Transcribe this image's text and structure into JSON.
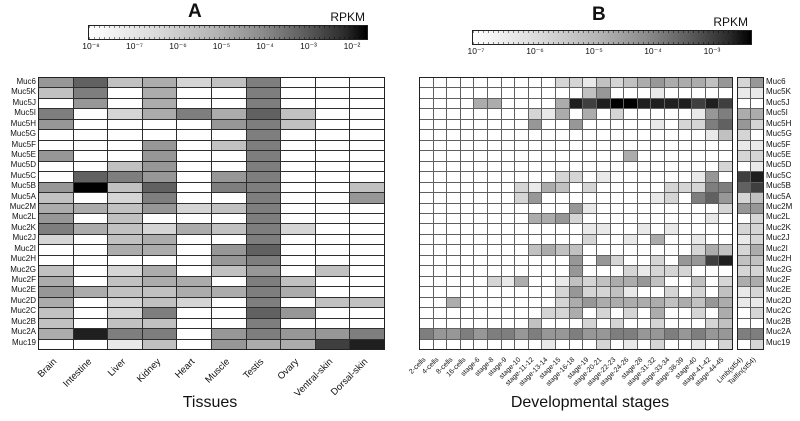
{
  "chart_data": [
    {
      "type": "heatmap",
      "panel_label": "A",
      "colorbar": {
        "title": "RPKM",
        "tick_labels": [
          "10⁻⁸",
          "10⁻⁷",
          "10⁻⁶",
          "10⁻⁵",
          "10⁻⁴",
          "10⁻³",
          "10⁻²"
        ],
        "orientation": "horizontal",
        "scale": "log10 RPKM, white = low, black = high"
      },
      "xlabel": "Tissues",
      "x_categories": [
        "Brain",
        "Intestine",
        "Liver",
        "Kidney",
        "Heart",
        "Muscle",
        "Testis",
        "Ovary",
        "Ventral-skin",
        "Dorsal-skin"
      ],
      "y_categories": [
        "Muc6",
        "Muc5K",
        "Muc5J",
        "Muc5I",
        "Muc5H",
        "Muc5G",
        "Muc5F",
        "Muc5E",
        "Muc5D",
        "Muc5C",
        "Muc5B",
        "Muc5A",
        "Muc2M",
        "Muc2L",
        "Muc2K",
        "Muc2J",
        "Muc2I",
        "Muc2H",
        "Muc2G",
        "Muc2F",
        "Muc2E",
        "Muc2D",
        "Muc2C",
        "Muc2B",
        "Muc2A",
        "Muc19"
      ],
      "value_scale": "grayscale intensity level 0-10; 0 = white (lowest RPKM), 10 = black (highest RPKM)",
      "values": [
        [
          5,
          7,
          3,
          4,
          2,
          3,
          6,
          0,
          0,
          0
        ],
        [
          3,
          6,
          0,
          4,
          0,
          0,
          6,
          0,
          0,
          0
        ],
        [
          0,
          5,
          0,
          4,
          0,
          0,
          6,
          0,
          0,
          0
        ],
        [
          6,
          0,
          2,
          4,
          6,
          4,
          7,
          3,
          0,
          0
        ],
        [
          5,
          0,
          0,
          0,
          0,
          5,
          6,
          3,
          0,
          0
        ],
        [
          0,
          0,
          0,
          0,
          0,
          0,
          6,
          0,
          0,
          0
        ],
        [
          0,
          0,
          0,
          5,
          0,
          3,
          6,
          0,
          0,
          0
        ],
        [
          5,
          0,
          0,
          5,
          0,
          0,
          6,
          0,
          0,
          0
        ],
        [
          0,
          0,
          3,
          5,
          0,
          0,
          6,
          0,
          0,
          0
        ],
        [
          0,
          7,
          6,
          5,
          0,
          5,
          6,
          0,
          0,
          0
        ],
        [
          5,
          10,
          3,
          7,
          0,
          6,
          6,
          0,
          0,
          3
        ],
        [
          3,
          0,
          2,
          6,
          0,
          0,
          6,
          0,
          0,
          5
        ],
        [
          4,
          4,
          3,
          5,
          2,
          3,
          6,
          0,
          0,
          0
        ],
        [
          5,
          0,
          3,
          0,
          0,
          0,
          6,
          0,
          0,
          0
        ],
        [
          6,
          4,
          3,
          2,
          4,
          3,
          6,
          2,
          0,
          0
        ],
        [
          2,
          0,
          3,
          4,
          0,
          0,
          6,
          0,
          0,
          0
        ],
        [
          0,
          0,
          4,
          4,
          0,
          5,
          7,
          0,
          0,
          0
        ],
        [
          0,
          0,
          0,
          0,
          0,
          5,
          6,
          0,
          0,
          0
        ],
        [
          3,
          0,
          2,
          4,
          0,
          3,
          5,
          0,
          3,
          0
        ],
        [
          4,
          0,
          3,
          4,
          4,
          0,
          6,
          3,
          0,
          0
        ],
        [
          5,
          4,
          3,
          3,
          4,
          4,
          6,
          4,
          0,
          0
        ],
        [
          4,
          0,
          2,
          3,
          2,
          0,
          6,
          0,
          3,
          3
        ],
        [
          3,
          0,
          2,
          6,
          0,
          0,
          7,
          5,
          0,
          0
        ],
        [
          3,
          0,
          3,
          3,
          0,
          0,
          6,
          0,
          0,
          0
        ],
        [
          4,
          9,
          6,
          6,
          0,
          5,
          6,
          5,
          5,
          6
        ],
        [
          0,
          0,
          1,
          3,
          0,
          5,
          4,
          4,
          8,
          9
        ]
      ]
    },
    {
      "type": "heatmap",
      "panel_label": "B",
      "colorbar": {
        "title": "RPKM",
        "tick_labels": [
          "10⁻⁷",
          "10⁻⁶",
          "10⁻⁵",
          "10⁻⁴",
          "10⁻³"
        ],
        "orientation": "horizontal",
        "scale": "log10 RPKM, white = low, black = high"
      },
      "xlabel": "Developmental stages",
      "x_categories": [
        "2-cells",
        "4-cells",
        "8-cells",
        "16-cells",
        "stage-6",
        "stage-8",
        "stage-9",
        "stage-10",
        "stage-11-12",
        "stage-13-14",
        "stage-15",
        "stage-16-18",
        "stage-19",
        "stage-20-21",
        "stage-22-23",
        "stage-24-26",
        "stage-28",
        "stage-31-32",
        "stage-33-34",
        "stage-38-39",
        "stage-40",
        "stage-41-42",
        "stage-44-45"
      ],
      "x_categories_extra_block": [
        "Limb(st54)",
        "Tailfin(st54)"
      ],
      "y_categories": [
        "Muc6",
        "Muc5K",
        "Muc5J",
        "Muc5I",
        "Muc5H",
        "Muc5G",
        "Muc5F",
        "Muc5E",
        "Muc5D",
        "Muc5C",
        "Muc5B",
        "Muc5A",
        "Muc2M",
        "Muc2L",
        "Muc2K",
        "Muc2J",
        "Muc2I",
        "Muc2H",
        "Muc2G",
        "Muc2F",
        "Muc2E",
        "Muc2D",
        "Muc2C",
        "Muc2B",
        "Muc2A",
        "Muc19"
      ],
      "value_scale": "grayscale intensity level 0-10; 0 = white (lowest RPKM), 10 = black (highest RPKM)",
      "values": [
        [
          0,
          0,
          0,
          0,
          0,
          0,
          0,
          0,
          0,
          0,
          2,
          2,
          1,
          3,
          2,
          3,
          4,
          5,
          4,
          4,
          4,
          3,
          5
        ],
        [
          0,
          0,
          0,
          0,
          0,
          0,
          0,
          0,
          0,
          0,
          0,
          0,
          3,
          5,
          0,
          0,
          0,
          1,
          0,
          0,
          0,
          0,
          0
        ],
        [
          0,
          0,
          0,
          0,
          4,
          4,
          0,
          0,
          0,
          0,
          4,
          9,
          8,
          9,
          10,
          10,
          9,
          9,
          9,
          9,
          8,
          9,
          8
        ],
        [
          0,
          0,
          0,
          0,
          0,
          0,
          0,
          0,
          2,
          1,
          4,
          0,
          4,
          0,
          2,
          0,
          0,
          0,
          0,
          0,
          1,
          5,
          6
        ],
        [
          0,
          0,
          0,
          0,
          0,
          0,
          0,
          0,
          5,
          0,
          0,
          5,
          0,
          0,
          0,
          0,
          0,
          1,
          0,
          2,
          2,
          6,
          7
        ],
        [
          0,
          0,
          0,
          0,
          0,
          0,
          0,
          0,
          0,
          0,
          0,
          0,
          0,
          0,
          0,
          0,
          0,
          0,
          0,
          0,
          0,
          1,
          3
        ],
        [
          0,
          0,
          0,
          0,
          0,
          0,
          0,
          0,
          0,
          0,
          0,
          0,
          0,
          0,
          0,
          0,
          0,
          0,
          0,
          0,
          0,
          0,
          0
        ],
        [
          0,
          0,
          0,
          0,
          0,
          0,
          0,
          0,
          0,
          0,
          0,
          0,
          0,
          0,
          0,
          4,
          0,
          0,
          0,
          0,
          0,
          0,
          0
        ],
        [
          0,
          0,
          0,
          0,
          0,
          0,
          0,
          0,
          0,
          0,
          0,
          0,
          0,
          0,
          0,
          0,
          0,
          0,
          0,
          0,
          0,
          0,
          2
        ],
        [
          0,
          0,
          0,
          0,
          0,
          0,
          0,
          0,
          0,
          0,
          2,
          2,
          0,
          1,
          0,
          0,
          0,
          0,
          0,
          0,
          1,
          5,
          0
        ],
        [
          0,
          0,
          0,
          0,
          0,
          0,
          0,
          2,
          1,
          4,
          3,
          0,
          2,
          0,
          0,
          0,
          0,
          0,
          2,
          2,
          2,
          6,
          6
        ],
        [
          0,
          0,
          0,
          0,
          0,
          0,
          0,
          2,
          5,
          0,
          0,
          0,
          0,
          0,
          0,
          0,
          0,
          1,
          2,
          0,
          6,
          7,
          5
        ],
        [
          0,
          0,
          0,
          0,
          0,
          0,
          0,
          0,
          0,
          0,
          0,
          5,
          1,
          0,
          0,
          0,
          0,
          0,
          0,
          0,
          0,
          0,
          2
        ],
        [
          0,
          0,
          0,
          0,
          0,
          0,
          0,
          0,
          4,
          4,
          5,
          2,
          0,
          0,
          0,
          0,
          0,
          0,
          0,
          0,
          0,
          1,
          0
        ],
        [
          0,
          0,
          0,
          0,
          0,
          0,
          0,
          0,
          0,
          0,
          0,
          0,
          1,
          1,
          0,
          0,
          1,
          0,
          1,
          0,
          0,
          0,
          0
        ],
        [
          0,
          0,
          0,
          0,
          0,
          0,
          0,
          0,
          0,
          0,
          0,
          0,
          2,
          0,
          0,
          1,
          0,
          4,
          0,
          0,
          1,
          0,
          0
        ],
        [
          0,
          0,
          0,
          0,
          0,
          0,
          0,
          0,
          3,
          4,
          3,
          3,
          0,
          0,
          0,
          0,
          0,
          0,
          0,
          0,
          2,
          4,
          3
        ],
        [
          0,
          0,
          0,
          0,
          0,
          0,
          0,
          0,
          0,
          0,
          0,
          5,
          0,
          5,
          2,
          0,
          0,
          2,
          0,
          5,
          5,
          8,
          9
        ],
        [
          0,
          0,
          0,
          0,
          0,
          0,
          0,
          0,
          0,
          0,
          0,
          5,
          0,
          0,
          0,
          2,
          1,
          2,
          2,
          2,
          0,
          0,
          0
        ],
        [
          0,
          0,
          0,
          0,
          0,
          2,
          1,
          4,
          0,
          0,
          1,
          3,
          2,
          3,
          4,
          4,
          5,
          3,
          0,
          0,
          3,
          0,
          2
        ],
        [
          0,
          0,
          0,
          0,
          0,
          0,
          0,
          0,
          0,
          0,
          2,
          5,
          2,
          2,
          3,
          1,
          0,
          0,
          2,
          0,
          2,
          0,
          3
        ],
        [
          0,
          0,
          4,
          0,
          0,
          0,
          0,
          0,
          0,
          0,
          2,
          4,
          5,
          4,
          4,
          4,
          4,
          4,
          3,
          4,
          3,
          5,
          4
        ],
        [
          0,
          0,
          0,
          0,
          0,
          0,
          0,
          0,
          0,
          2,
          2,
          4,
          0,
          2,
          0,
          2,
          0,
          4,
          0,
          0,
          2,
          0,
          4
        ],
        [
          0,
          0,
          0,
          0,
          0,
          0,
          0,
          0,
          3,
          0,
          0,
          0,
          2,
          0,
          2,
          0,
          0,
          2,
          0,
          0,
          0,
          2,
          3
        ],
        [
          6,
          5,
          5,
          6,
          5,
          6,
          6,
          5,
          6,
          5,
          5,
          6,
          5,
          5,
          6,
          6,
          5,
          5,
          6,
          5,
          6,
          5,
          5
        ],
        [
          0,
          0,
          0,
          0,
          0,
          0,
          0,
          0,
          0,
          1,
          0,
          0,
          0,
          2,
          0,
          1,
          0,
          2,
          0,
          0,
          1,
          0,
          2
        ]
      ],
      "values_extra_block": [
        [
          2,
          5
        ],
        [
          1,
          1
        ],
        [
          0,
          0
        ],
        [
          4,
          4
        ],
        [
          5,
          2
        ],
        [
          2,
          0
        ],
        [
          1,
          1
        ],
        [
          2,
          2
        ],
        [
          0,
          1
        ],
        [
          8,
          9
        ],
        [
          7,
          8
        ],
        [
          2,
          3
        ],
        [
          5,
          5
        ],
        [
          0,
          2
        ],
        [
          2,
          2
        ],
        [
          1,
          2
        ],
        [
          2,
          4
        ],
        [
          3,
          3
        ],
        [
          2,
          2
        ],
        [
          4,
          4
        ],
        [
          1,
          2
        ],
        [
          1,
          1
        ],
        [
          0,
          2
        ],
        [
          0,
          0
        ],
        [
          6,
          6
        ],
        [
          0,
          2
        ]
      ]
    }
  ]
}
